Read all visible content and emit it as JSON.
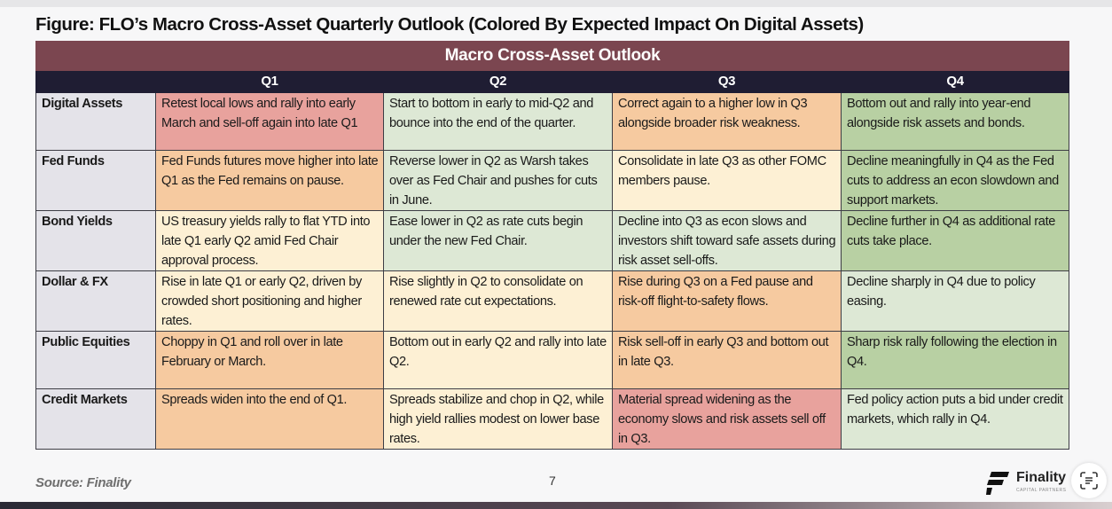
{
  "figure_title": "Figure: FLO’s Macro Cross-Asset Quarterly Outlook (Colored By Expected Impact On Digital Assets)",
  "table": {
    "banner": "Macro Cross-Asset Outlook",
    "quarters": [
      "Q1",
      "Q2",
      "Q3",
      "Q4"
    ],
    "colors": {
      "red": "#e8a29d",
      "orange": "#f6caa0",
      "yellow": "#fdf0d4",
      "light_green": "#dde8d5",
      "green": "#b8d0a3",
      "banner": "#7b4650",
      "header": "#1f1d33"
    },
    "rows": [
      {
        "label": "Digital Assets",
        "cells": [
          {
            "text": "Retest local lows and rally into early March and sell-off again into late Q1",
            "color": "red"
          },
          {
            "text": "Start to bottom in early to mid-Q2 and bounce into the end of the quarter.",
            "color": "lgreen"
          },
          {
            "text": "Correct again to a higher low in Q3 alongside broader risk weakness.",
            "color": "orange"
          },
          {
            "text": "Bottom out and rally into year-end alongside risk assets and bonds.",
            "color": "green"
          }
        ]
      },
      {
        "label": "Fed Funds",
        "cells": [
          {
            "text": "Fed Funds futures move higher into late Q1 as the Fed remains on pause.",
            "color": "orange"
          },
          {
            "text": "Reverse lower in Q2 as Warsh takes over as Fed Chair and pushes for cuts in June.",
            "color": "lgreen"
          },
          {
            "text": "Consolidate in late Q3 as other FOMC members pause.",
            "color": "yellow"
          },
          {
            "text": "Decline meaningfully in Q4 as the Fed cuts to address an econ slowdown and support markets.",
            "color": "green"
          }
        ]
      },
      {
        "label": "Bond Yields",
        "cells": [
          {
            "text": "US treasury yields rally to flat YTD into late Q1 early Q2 amid Fed Chair approval process.",
            "color": "yellow"
          },
          {
            "text": "Ease lower in Q2 as rate cuts begin under the new Fed Chair.",
            "color": "lgreen"
          },
          {
            "text": "Decline into Q3 as econ slows and investors shift toward safe assets during risk asset sell-offs.",
            "color": "lgreen"
          },
          {
            "text": "Decline further in Q4 as additional rate cuts take place.",
            "color": "green"
          }
        ]
      },
      {
        "label": "Dollar & FX",
        "cells": [
          {
            "text": "Rise in late Q1 or early Q2, driven by crowded short positioning and higher rates.",
            "color": "yellow"
          },
          {
            "text": "Rise slightly in Q2 to consolidate on renewed rate cut expectations.",
            "color": "yellow"
          },
          {
            "text": "Rise during Q3 on a Fed pause and risk-off flight-to-safety flows.",
            "color": "orange"
          },
          {
            "text": "Decline sharply in Q4 due to policy easing.",
            "color": "lgreen"
          }
        ]
      },
      {
        "label": "Public Equities",
        "cells": [
          {
            "text": "Choppy in Q1 and roll over in late February or March.",
            "color": "orange"
          },
          {
            "text": "Bottom out in early Q2 and rally into late Q2.",
            "color": "yellow"
          },
          {
            "text": "Risk sell-off in early Q3 and bottom out in late Q3.",
            "color": "orange"
          },
          {
            "text": "Sharp risk rally following the election in Q4.",
            "color": "green"
          }
        ]
      },
      {
        "label": "Credit Markets",
        "cells": [
          {
            "text": "Spreads widen into the end of Q1.",
            "color": "orange"
          },
          {
            "text": "Spreads stabilize and chop in Q2, while high yield rallies modest on lower base rates.",
            "color": "yellow"
          },
          {
            "text": "Material spread widening as the economy slows and risk assets sell off in Q3.",
            "color": "red"
          },
          {
            "text": "Fed policy action puts a bid under credit markets, which rally in Q4.",
            "color": "lgreen"
          }
        ]
      }
    ]
  },
  "footer": {
    "source": "Source: Finality",
    "page_number": "7",
    "logo_text": "Finality",
    "logo_subtext": "CAPITAL PARTNERS",
    "scan_icon": "text-scan-icon"
  }
}
